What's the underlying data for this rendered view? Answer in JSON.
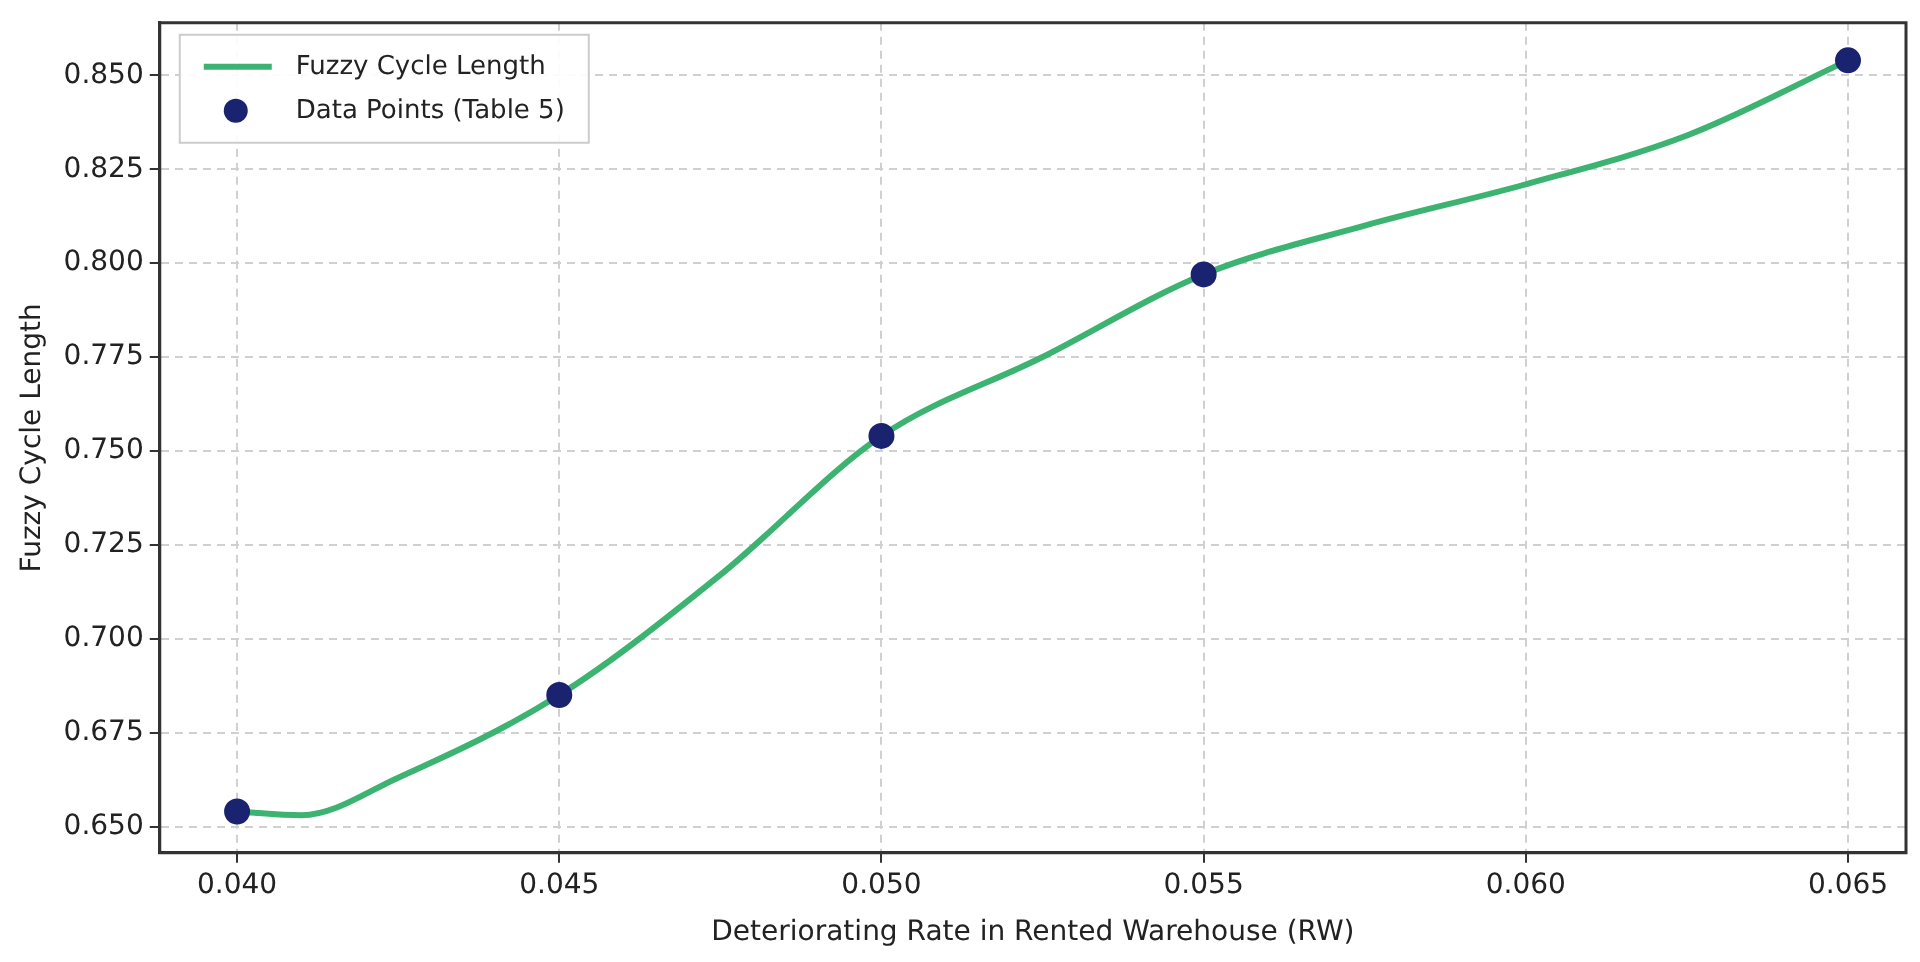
{
  "chart_data": {
    "type": "line",
    "xlabel": "Deteriorating Rate in Rented Warehouse (RW)",
    "ylabel": "Fuzzy Cycle Length",
    "series": [
      {
        "name": "Fuzzy Cycle Length",
        "color": "#3cb371",
        "marker": "none",
        "x": [
          0.04,
          0.041,
          0.0425,
          0.045,
          0.0475,
          0.05,
          0.0525,
          0.055,
          0.0575,
          0.06,
          0.0625,
          0.065
        ],
        "values": [
          0.654,
          0.653,
          0.663,
          0.685,
          0.717,
          0.754,
          0.775,
          0.797,
          0.81,
          0.821,
          0.834,
          0.854
        ]
      },
      {
        "name": "Data Points (Table 5)",
        "type": "scatter",
        "color": "#1a2370",
        "marker": "circle",
        "x": [
          0.04,
          0.045,
          0.05,
          0.055,
          0.065
        ],
        "values": [
          0.654,
          0.685,
          0.754,
          0.797,
          0.854
        ]
      }
    ],
    "xlim": [
      0.0388,
      0.0659
    ],
    "xticks": [
      {
        "value": 0.04,
        "label": "0.040"
      },
      {
        "value": 0.045,
        "label": "0.045"
      },
      {
        "value": 0.05,
        "label": "0.050"
      },
      {
        "value": 0.055,
        "label": "0.055"
      },
      {
        "value": 0.06,
        "label": "0.060"
      },
      {
        "value": 0.065,
        "label": "0.065"
      }
    ],
    "ylim": [
      0.643,
      0.864
    ],
    "yticks": [
      {
        "value": 0.65,
        "label": "0.650"
      },
      {
        "value": 0.675,
        "label": "0.675"
      },
      {
        "value": 0.7,
        "label": "0.700"
      },
      {
        "value": 0.725,
        "label": "0.725"
      },
      {
        "value": 0.75,
        "label": "0.750"
      },
      {
        "value": 0.775,
        "label": "0.775"
      },
      {
        "value": 0.8,
        "label": "0.800"
      },
      {
        "value": 0.825,
        "label": "0.825"
      },
      {
        "value": 0.85,
        "label": "0.850"
      }
    ],
    "grid": true,
    "legend": "top left"
  }
}
